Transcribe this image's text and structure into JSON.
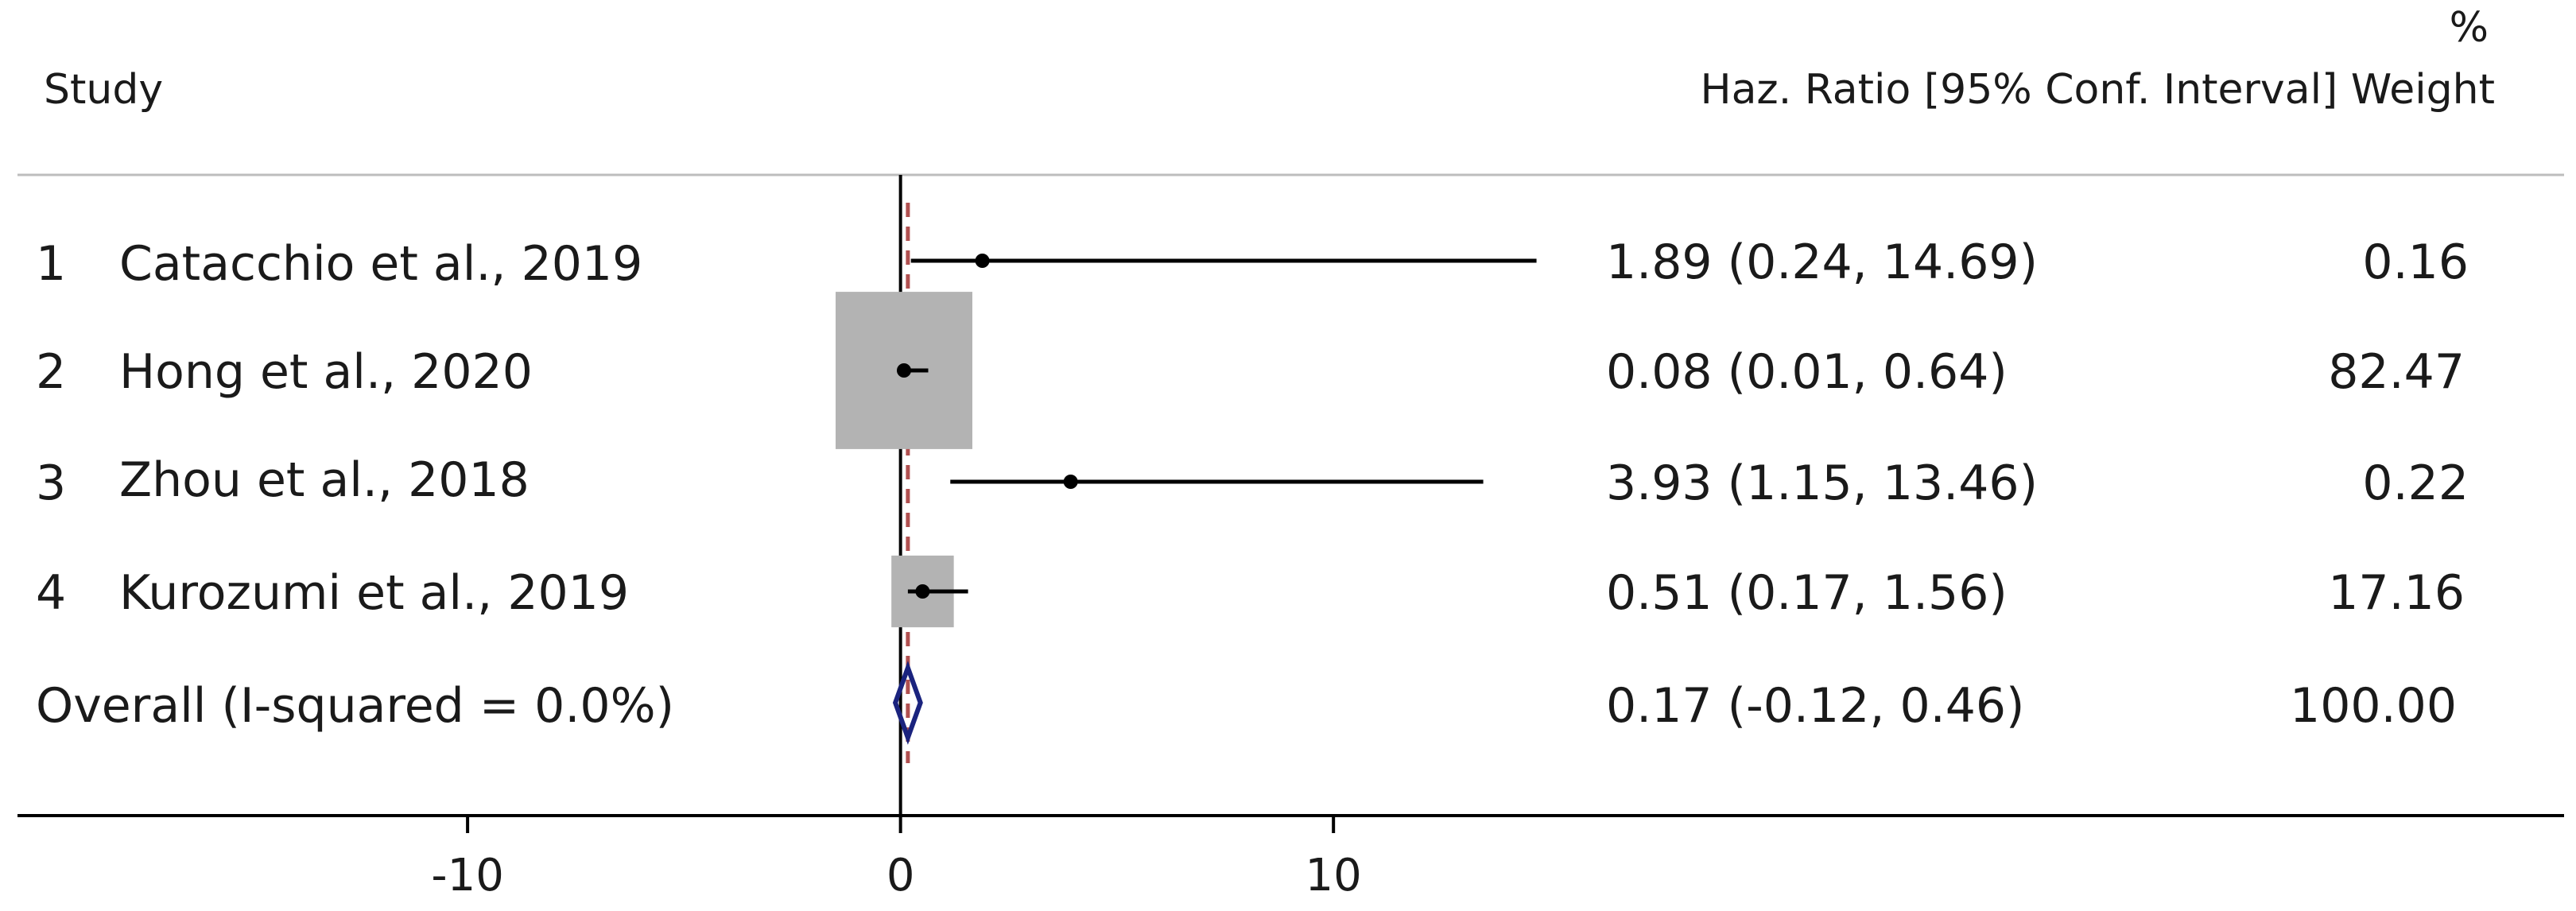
{
  "chart_data": {
    "type": "forest",
    "header": {
      "study": "Study",
      "percent_symbol": "%",
      "estimate": "Haz. Ratio [95% Conf. Interval] Weight"
    },
    "studies": [
      {
        "num": "1",
        "name": "Catacchio et al., 2019",
        "hr": 1.89,
        "lo": 0.24,
        "hi": 14.69,
        "ci_text": "1.89 (0.24, 14.69)",
        "weight": 0.16,
        "weight_text": "0.16"
      },
      {
        "num": "2",
        "name": "Hong et al., 2020",
        "hr": 0.08,
        "lo": 0.01,
        "hi": 0.64,
        "ci_text": "0.08 (0.01, 0.64)",
        "weight": 82.47,
        "weight_text": "82.47"
      },
      {
        "num": "3",
        "name": "Zhou et al., 2018",
        "hr": 3.93,
        "lo": 1.15,
        "hi": 13.46,
        "ci_text": "3.93 (1.15, 13.46)",
        "weight": 0.22,
        "weight_text": "0.22"
      },
      {
        "num": "4",
        "name": "Kurozumi et al., 2019",
        "hr": 0.51,
        "lo": 0.17,
        "hi": 1.56,
        "ci_text": "0.51 (0.17, 1.56)",
        "weight": 17.16,
        "weight_text": "17.16"
      }
    ],
    "overall": {
      "label": "Overall (I-squared = 0.0%)",
      "est": 0.17,
      "lo": -0.12,
      "hi": 0.46,
      "ci_text": "0.17 (-0.12, 0.46)",
      "weight_text": "100.00"
    },
    "x_axis": {
      "range": [
        -20.8,
        38.7
      ],
      "ticks": [
        -10,
        0,
        10
      ],
      "tick_labels": [
        "-10",
        "0",
        "10"
      ]
    },
    "null_line": 0,
    "colors": {
      "ci_line": "#000000",
      "weight_box": "#b3b3b3",
      "overall_diamond": "#1a237e",
      "overall_line": "#b05050",
      "axis": "#000000",
      "separator": "#bdbdbd"
    }
  }
}
